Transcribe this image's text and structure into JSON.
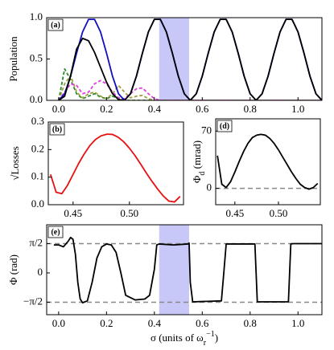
{
  "chart_data": [
    {
      "type": "line",
      "label": "(a)",
      "ylabel": [
        {
          "text": "Population"
        }
      ],
      "xlim": [
        -0.05,
        1.1
      ],
      "ylim": [
        0,
        1.0
      ],
      "xticks": [
        {
          "value": 0,
          "label": "0.0"
        },
        0.2,
        0.4,
        0.6,
        0.8,
        {
          "value": 1,
          "label": "1.0"
        }
      ],
      "yticks": [
        {
          "value": 0,
          "label": "0.0"
        },
        0.5,
        {
          "value": 1,
          "label": "1.0"
        }
      ],
      "highlight": [
        0.42,
        0.545
      ],
      "highlight_color": "#c8c8f8",
      "x": [
        0,
        0.025,
        0.05,
        0.075,
        0.1,
        0.125,
        0.15,
        0.175,
        0.2,
        0.225,
        0.25,
        0.275,
        0.3,
        0.325,
        0.35,
        0.375,
        0.4,
        0.425,
        0.45,
        0.475,
        0.5,
        0.525,
        0.55,
        0.575,
        0.6,
        0.625,
        0.65,
        0.675,
        0.7,
        0.725,
        0.75,
        0.775,
        0.8,
        0.825,
        0.85,
        0.875,
        0.9,
        0.925,
        0.95,
        0.975,
        1.0,
        1.025,
        1.05,
        1.075,
        1.1
      ],
      "series": [
        {
          "color": "#2a8a2a",
          "style": "dashed",
          "values": [
            0,
            0.38,
            0.25,
            0.08,
            0.02,
            0.05,
            0.08,
            0.04,
            0.02,
            0.05,
            0.02,
            0,
            0,
            0,
            0,
            0,
            0,
            0,
            0,
            0,
            0,
            0,
            0,
            0,
            0,
            0,
            0,
            0,
            0,
            0,
            0,
            0,
            0,
            0,
            0,
            0,
            0,
            0,
            0,
            0,
            0,
            0,
            0,
            0,
            0
          ]
        },
        {
          "color": "#a0a040",
          "style": "dashed",
          "values": [
            0,
            0.2,
            0.3,
            0.1,
            0.03,
            0.08,
            0.1,
            0.05,
            0.02,
            0.08,
            0.18,
            0.1,
            0.03,
            0.05,
            0.06,
            0.02,
            0,
            0,
            0,
            0,
            0,
            0,
            0,
            0,
            0,
            0,
            0,
            0,
            0,
            0,
            0,
            0,
            0,
            0,
            0,
            0,
            0,
            0,
            0,
            0,
            0,
            0,
            0,
            0,
            0
          ]
        },
        {
          "color": "#e040e0",
          "style": "dashed",
          "values": [
            0,
            0.1,
            0.2,
            0.18,
            0.08,
            0.1,
            0.2,
            0.24,
            0.2,
            0.1,
            0.03,
            0.02,
            0.08,
            0.14,
            0.15,
            0.08,
            0.02,
            0,
            0,
            0,
            0,
            0,
            0,
            0,
            0,
            0,
            0,
            0,
            0,
            0,
            0,
            0,
            0,
            0,
            0,
            0,
            0,
            0,
            0,
            0,
            0,
            0,
            0,
            0,
            0
          ]
        },
        {
          "color": "#1010c0",
          "style": "solid",
          "values": [
            0,
            0.0794,
            0.2923,
            0.5711,
            0.8274,
            0.9797,
            0.9797,
            0.8274,
            0.5711,
            0.2923,
            0.0794,
            0,
            0.0794,
            0.2923,
            0.5711,
            0.8274,
            0.9797,
            0.9797,
            0.8274,
            0.5711,
            0.2923,
            0.0794,
            0,
            0.0794,
            0.2923,
            0.5711,
            0.8274,
            0.9797,
            0.9797,
            0.8274,
            0.5711,
            0.2923,
            0.0794,
            0,
            0.0794,
            0.2923,
            0.5711,
            0.8274,
            0.9797,
            0.9797,
            0.8274,
            0.5711,
            0.2923,
            0.0794,
            0
          ]
        },
        {
          "color": "#000000",
          "style": "solid",
          "values": [
            0,
            0.05,
            0.3,
            0.62,
            0.75,
            0.72,
            0.58,
            0.4,
            0.22,
            0.08,
            0.01,
            0,
            0.0794,
            0.2923,
            0.5711,
            0.8274,
            0.9797,
            0.9797,
            0.8274,
            0.5711,
            0.2923,
            0.0794,
            0,
            0.0794,
            0.2923,
            0.5711,
            0.8274,
            0.9797,
            0.9797,
            0.8274,
            0.5711,
            0.2923,
            0.0794,
            0,
            0.0794,
            0.2923,
            0.5711,
            0.8274,
            0.9797,
            0.9797,
            0.8274,
            0.5711,
            0.2923,
            0.0794,
            0
          ]
        }
      ]
    },
    {
      "type": "line",
      "label": "(b)",
      "ylabel": [
        {
          "text": "√Losses"
        }
      ],
      "xlim": [
        0.428,
        0.548
      ],
      "ylim": [
        0,
        0.3
      ],
      "xticks": [
        0.45,
        {
          "value": 0.5,
          "label": "0.50"
        }
      ],
      "yticks": [
        {
          "value": 0,
          "label": "0.0"
        },
        0.1,
        0.2,
        0.3
      ],
      "x": [
        0.43,
        0.435,
        0.44,
        0.445,
        0.45,
        0.455,
        0.46,
        0.465,
        0.47,
        0.475,
        0.48,
        0.485,
        0.49,
        0.495,
        0.5,
        0.505,
        0.51,
        0.515,
        0.52,
        0.525,
        0.53,
        0.535,
        0.54,
        0.545
      ],
      "series": [
        {
          "color": "#e81010",
          "style": "solid",
          "values": [
            0.11,
            0.045,
            0.04,
            0.07,
            0.11,
            0.15,
            0.185,
            0.215,
            0.237,
            0.25,
            0.256,
            0.255,
            0.245,
            0.228,
            0.205,
            0.178,
            0.147,
            0.115,
            0.085,
            0.057,
            0.032,
            0.013,
            0.01,
            0.03
          ]
        }
      ]
    },
    {
      "type": "line",
      "label": "(d)",
      "ylabel": [
        {
          "text": "Φ"
        },
        {
          "text": "d",
          "sub": true
        },
        {
          "text": " (mrad)"
        }
      ],
      "xlim": [
        0.428,
        0.548
      ],
      "ylim": [
        -20,
        85
      ],
      "xticks": [
        0.45,
        {
          "value": 0.5,
          "label": "0.50"
        }
      ],
      "yticks": [
        0,
        70
      ],
      "reference_lines": [
        0
      ],
      "x": [
        0.43,
        0.435,
        0.44,
        0.445,
        0.45,
        0.455,
        0.46,
        0.465,
        0.47,
        0.475,
        0.48,
        0.485,
        0.49,
        0.495,
        0.5,
        0.505,
        0.51,
        0.515,
        0.52,
        0.525,
        0.53,
        0.535,
        0.54,
        0.545
      ],
      "series": [
        {
          "color": "#000000",
          "style": "solid",
          "values": [
            40,
            5,
            1,
            8,
            20,
            33,
            45,
            55,
            62,
            65,
            66,
            65,
            61,
            55,
            47,
            38,
            29,
            20,
            12,
            5,
            1,
            -1,
            1,
            6
          ]
        }
      ]
    },
    {
      "type": "line",
      "label": "(e)",
      "ylabel": [
        {
          "text": "Φ (rad)"
        }
      ],
      "xlabel": [
        {
          "text": "σ (units of ω"
        },
        {
          "text": "r",
          "sub": true
        },
        {
          "text": "−1",
          "sup": true
        },
        {
          "text": ")"
        }
      ],
      "xlim": [
        -0.05,
        1.1
      ],
      "ylim": [
        -2.24,
        2.58
      ],
      "xticks": [
        {
          "value": 0,
          "label": "0.0"
        },
        0.2,
        0.4,
        0.6,
        0.8,
        {
          "value": 1,
          "label": "1.0"
        }
      ],
      "yticks": [
        {
          "value": -1.5708,
          "label": "−π/2"
        },
        0,
        {
          "value": 1.5708,
          "label": "π/2"
        }
      ],
      "highlight": [
        0.42,
        0.545
      ],
      "highlight_color": "#c8c8f8",
      "reference_lines": [
        -1.5708,
        1.5708
      ],
      "x": [
        -0.02,
        0,
        0.02,
        0.04,
        0.05,
        0.06,
        0.07,
        0.08,
        0.09,
        0.1,
        0.12,
        0.14,
        0.16,
        0.18,
        0.2,
        0.22,
        0.24,
        0.26,
        0.28,
        0.32,
        0.36,
        0.38,
        0.4,
        0.41,
        0.42,
        0.48,
        0.54,
        0.545,
        0.55,
        0.56,
        0.68,
        0.69,
        0.7,
        0.82,
        0.825,
        0.83,
        0.84,
        0.96,
        0.965,
        0.97,
        0.98,
        1.1
      ],
      "series": [
        {
          "color": "#000000",
          "style": "solid",
          "values": [
            1.5,
            1.5,
            1.4,
            1.7,
            1.9,
            1.8,
            1.0,
            -0.5,
            -1.4,
            -1.6,
            -1.5,
            -0.5,
            0.8,
            1.4,
            1.55,
            1.5,
            1.1,
            0.0,
            -1.2,
            -1.45,
            -1.4,
            -1.2,
            0.2,
            1.5,
            1.55,
            1.5,
            1.55,
            1.6,
            -0.5,
            -1.55,
            -1.5,
            0.0,
            1.55,
            1.55,
            0.0,
            -1.55,
            -1.55,
            -1.55,
            0,
            1.55,
            1.57,
            1.57
          ]
        }
      ]
    }
  ]
}
